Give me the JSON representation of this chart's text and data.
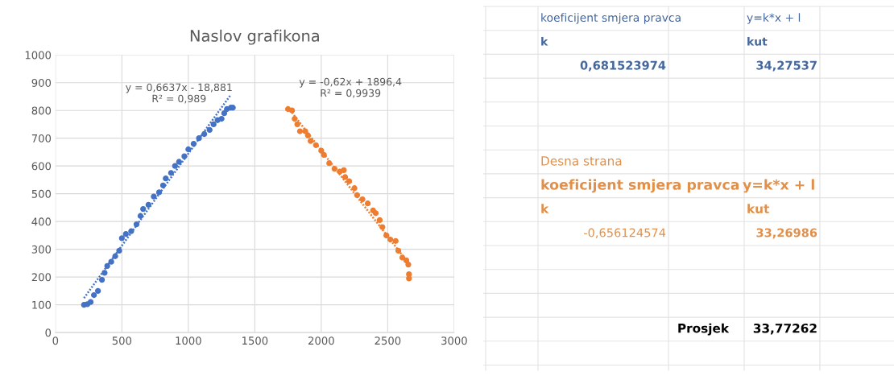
{
  "chart_data": [
    {
      "type": "scatter",
      "title": "Naslov grafikona",
      "xlim": [
        0,
        3000
      ],
      "xticks": [
        0,
        500,
        1000,
        1500,
        2000,
        2500,
        3000
      ],
      "ylim": [
        0,
        1000
      ],
      "yticks": [
        0,
        100,
        200,
        300,
        400,
        500,
        600,
        700,
        800,
        900,
        1000
      ],
      "grid": true,
      "legend": false,
      "marker": "circle",
      "series": [
        {
          "color": "#4472c4",
          "x": [
            215,
            240,
            265,
            290,
            320,
            350,
            370,
            390,
            420,
            450,
            480,
            500,
            530,
            570,
            610,
            640,
            660,
            700,
            740,
            780,
            810,
            830,
            870,
            900,
            930,
            970,
            1000,
            1040,
            1080,
            1120,
            1160,
            1190,
            1220,
            1250,
            1270,
            1290,
            1320,
            1335
          ],
          "values": [
            100,
            102,
            110,
            135,
            150,
            190,
            215,
            240,
            255,
            275,
            295,
            340,
            355,
            365,
            390,
            420,
            445,
            460,
            490,
            505,
            530,
            555,
            575,
            600,
            615,
            635,
            660,
            680,
            700,
            715,
            730,
            750,
            765,
            770,
            790,
            805,
            810,
            810
          ]
        },
        {
          "color": "#ed7d31",
          "x": [
            1750,
            1780,
            1800,
            1820,
            1840,
            1880,
            1900,
            1920,
            1960,
            2000,
            2020,
            2060,
            2100,
            2140,
            2170,
            2180,
            2210,
            2250,
            2270,
            2310,
            2350,
            2390,
            2410,
            2440,
            2460,
            2490,
            2520,
            2560,
            2580,
            2610,
            2640,
            2655,
            2660,
            2660
          ],
          "values": [
            805,
            800,
            770,
            750,
            725,
            725,
            710,
            690,
            675,
            655,
            640,
            610,
            590,
            580,
            585,
            560,
            545,
            520,
            495,
            480,
            465,
            440,
            430,
            405,
            380,
            350,
            335,
            330,
            295,
            270,
            260,
            245,
            210,
            195
          ]
        },
        {
          "type": "line",
          "line_style": "dotted",
          "marker": "none",
          "color": "#4472c4",
          "x": [
            215,
            1320
          ],
          "values": [
            124,
            857
          ]
        },
        {
          "type": "line",
          "line_style": "dotted",
          "marker": "none",
          "color": "#ed7d31",
          "x": [
            1750,
            2660
          ],
          "values": [
            811,
            247
          ]
        }
      ],
      "annotations": [
        "y = 0,6637x - 18,881\nR² = 0,989",
        "y = -0,62x + 1896,4\nR² = 0,9939"
      ]
    },
    {
      "type": "other",
      "annotations": [
        "koeficijent smjera pravca",
        "y=k*x + l",
        "k",
        "kut",
        "0,681523974",
        "34,27537",
        "Desna strana",
        "koeficijent smjera pravca",
        "y=k*x + l",
        "k",
        "kut",
        "-0,656124574",
        "33,26986",
        "Prosjek",
        "33,77262"
      ]
    }
  ]
}
